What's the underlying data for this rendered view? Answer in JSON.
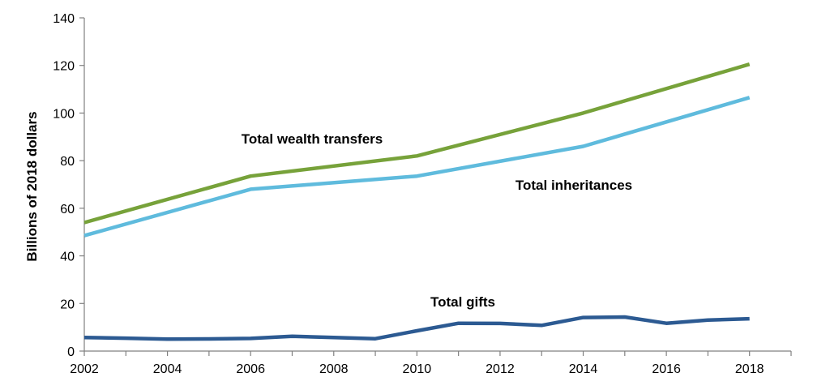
{
  "chart_data": {
    "type": "line",
    "ylabel": "Billions of 2018 dollars",
    "xlim": [
      2002,
      2019
    ],
    "ylim": [
      0,
      140
    ],
    "x_ticks": [
      "2002",
      "2004",
      "2006",
      "2008",
      "2010",
      "2012",
      "2014",
      "2016",
      "2018"
    ],
    "y_ticks": [
      "0",
      "20",
      "40",
      "60",
      "80",
      "100",
      "120",
      "140"
    ],
    "grid": false,
    "series": [
      {
        "name": "Total wealth transfers",
        "color": "#77A23A",
        "x": [
          2002,
          2006,
          2010,
          2014,
          2018
        ],
        "y": [
          54,
          73.5,
          82,
          100,
          120.5
        ]
      },
      {
        "name": "Total inheritances",
        "color": "#5FBBDD",
        "x": [
          2002,
          2006,
          2010,
          2014,
          2018
        ],
        "y": [
          48.5,
          68,
          73.5,
          86,
          106.5
        ]
      },
      {
        "name": "Total gifts",
        "color": "#2C5A92",
        "x": [
          2002,
          2003,
          2004,
          2005,
          2006,
          2007,
          2008,
          2009,
          2010,
          2011,
          2012,
          2013,
          2014,
          2015,
          2016,
          2017,
          2018
        ],
        "y": [
          5.7,
          5.4,
          5.0,
          5.1,
          5.3,
          6.2,
          5.7,
          5.2,
          8.5,
          11.7,
          11.6,
          10.8,
          14.1,
          14.3,
          11.7,
          13.0,
          13.6
        ]
      }
    ]
  }
}
